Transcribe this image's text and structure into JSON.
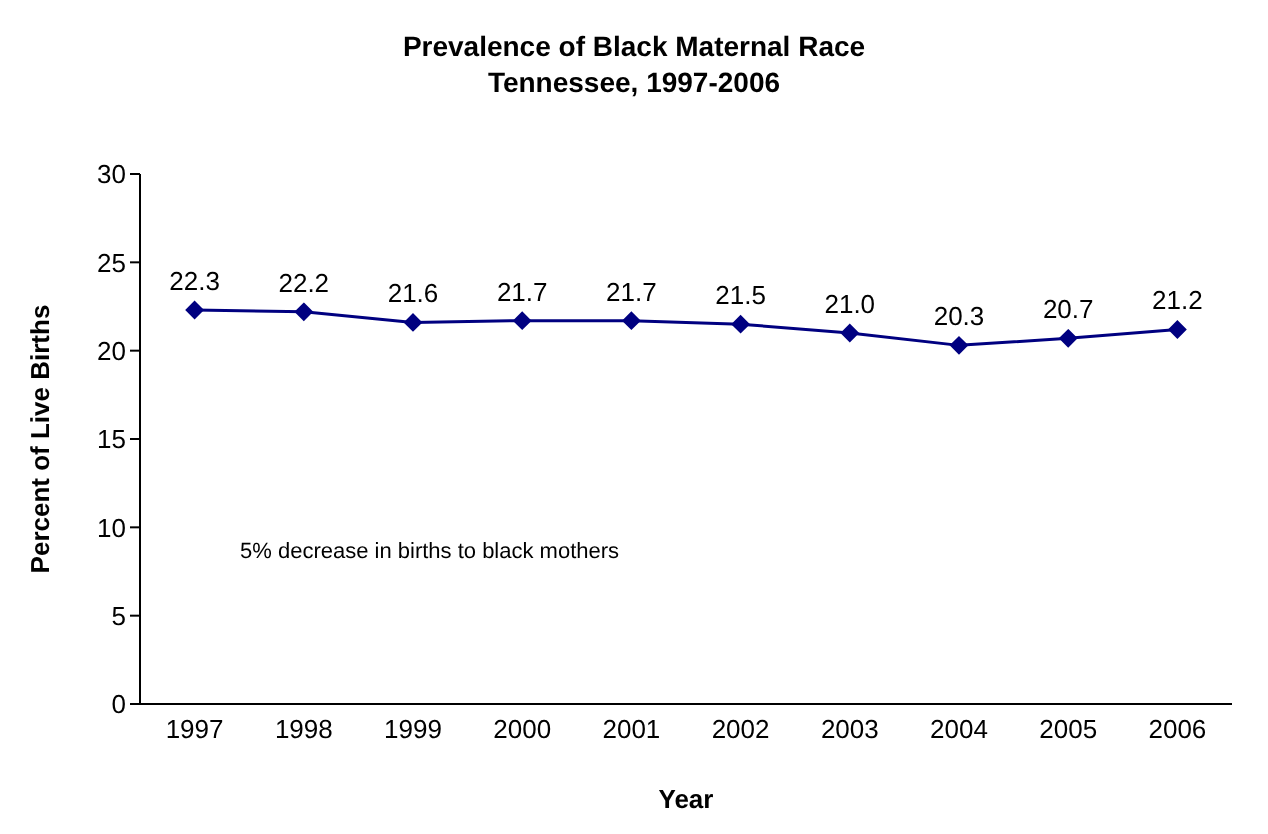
{
  "chart_data": {
    "type": "line",
    "title": "Prevalence of Black Maternal Race\nTennessee, 1997-2006",
    "xlabel": "Year",
    "ylabel": "Percent of Live Births",
    "categories": [
      "1997",
      "1998",
      "1999",
      "2000",
      "2001",
      "2002",
      "2003",
      "2004",
      "2005",
      "2006"
    ],
    "series": [
      {
        "color": "#000080",
        "values": [
          22.3,
          22.2,
          21.6,
          21.7,
          21.7,
          21.5,
          21.0,
          20.3,
          20.7,
          21.2
        ],
        "value_labels": [
          "22.3",
          "22.2",
          "21.6",
          "21.7",
          "21.7",
          "21.5",
          "21.0",
          "20.3",
          "20.7",
          "21.2"
        ]
      }
    ],
    "ylim": [
      0,
      30
    ],
    "yticks": [
      0,
      5,
      10,
      15,
      20,
      25,
      30
    ],
    "marker": "diamond",
    "line_style": "solid",
    "annotations": [
      "5% decrease in births to black mothers"
    ]
  }
}
